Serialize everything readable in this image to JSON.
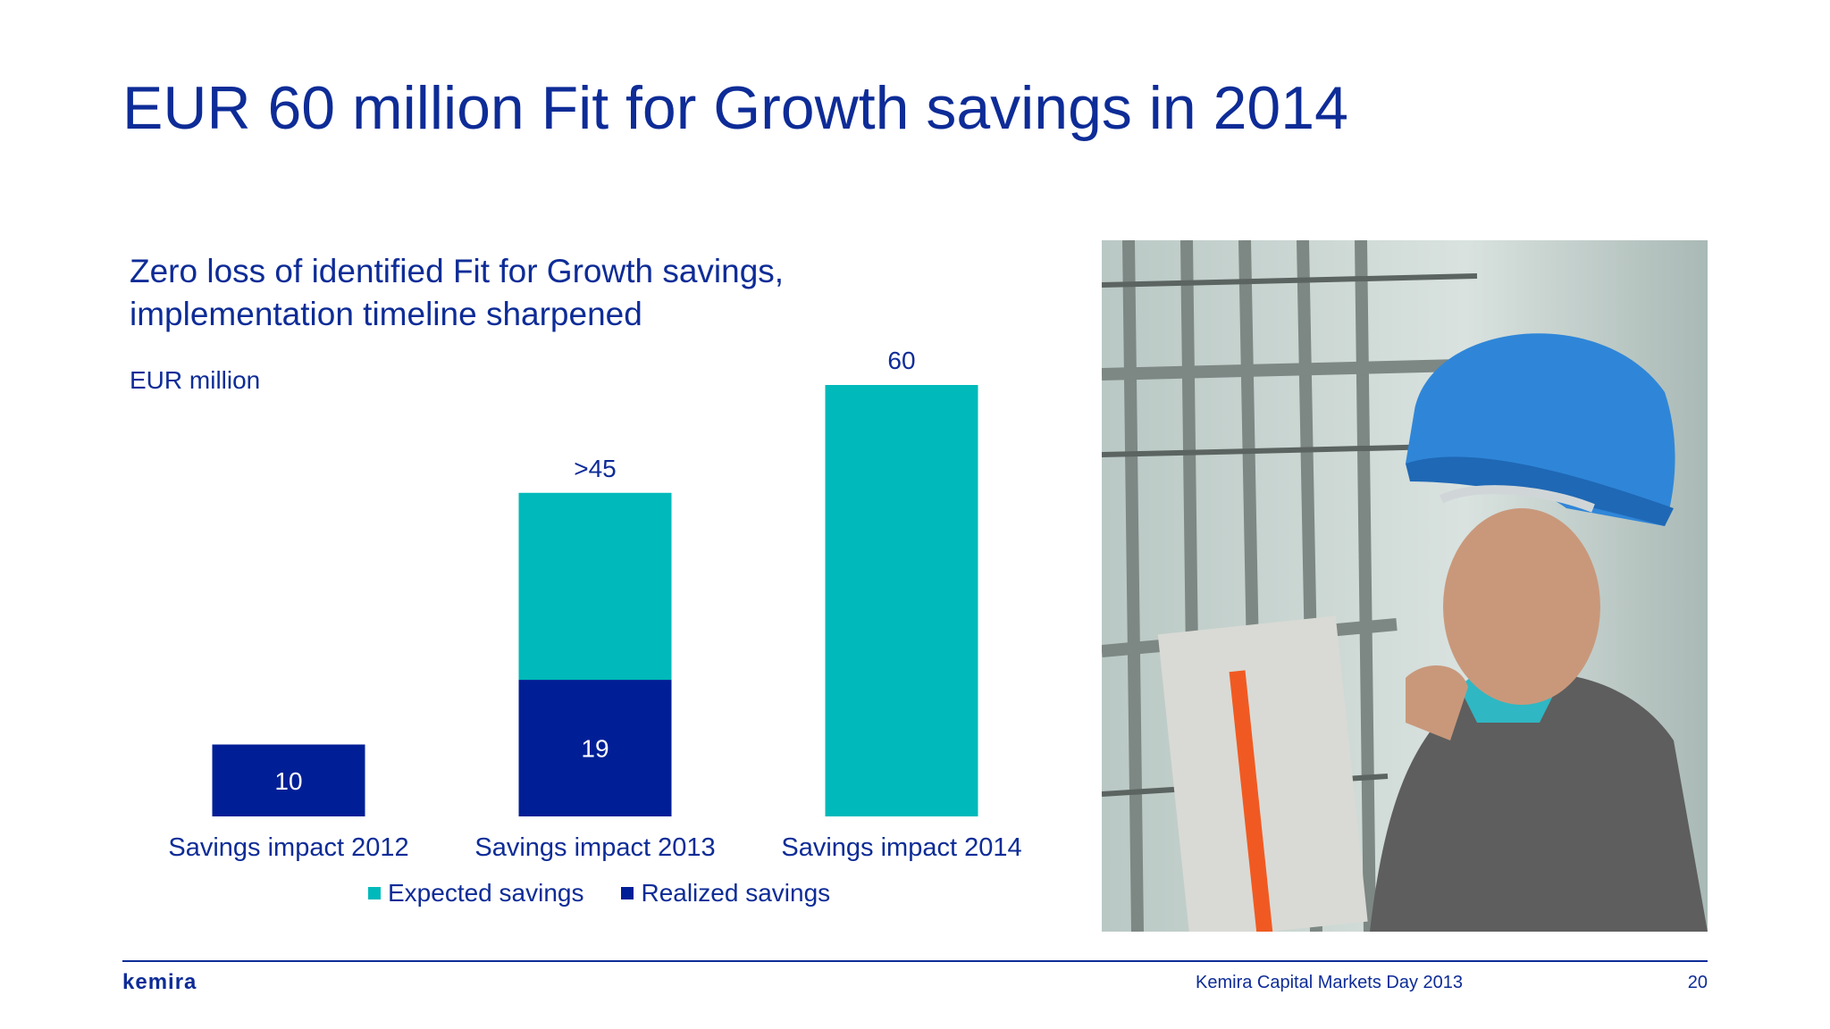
{
  "slide": {
    "title": "EUR 60 million Fit for Growth savings in 2014",
    "subtitle_line1": "Zero loss of identified Fit for Growth savings,",
    "subtitle_line2": "implementation timeline sharpened",
    "unit_label": "EUR million"
  },
  "colors": {
    "title": "#0E2C97",
    "expected": "#00B9BA",
    "realized": "#001F96"
  },
  "chart_data": {
    "type": "bar",
    "stacked": true,
    "categories": [
      "Savings impact 2012",
      "Savings impact 2013",
      "Savings impact 2014"
    ],
    "series": [
      {
        "name": "Realized savings",
        "values": [
          10,
          19,
          0
        ],
        "color": "#001F96"
      },
      {
        "name": "Expected savings",
        "values": [
          0,
          26,
          60
        ],
        "color": "#00B9BA"
      }
    ],
    "total_labels": [
      "",
      ">45",
      "60"
    ],
    "segment_labels": [
      "10",
      "19",
      ""
    ],
    "ylabel": "EUR million",
    "ylim": [
      0,
      60
    ],
    "grid": false,
    "legend_position": "bottom"
  },
  "legend": {
    "expected_label": "Expected savings",
    "realized_label": "Realized savings"
  },
  "photo": {
    "icon": "worker-photo"
  },
  "footer": {
    "logo": "kemira",
    "event": "Kemira Capital Markets Day 2013",
    "page": "20"
  }
}
